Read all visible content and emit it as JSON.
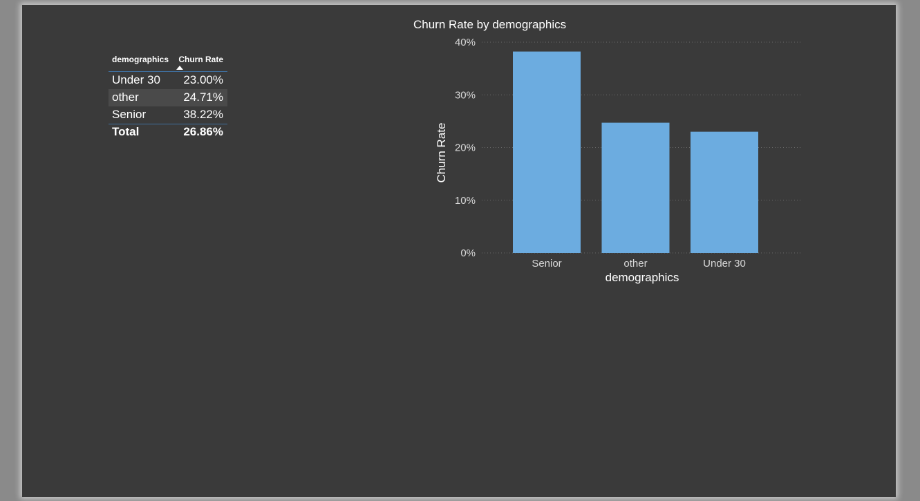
{
  "table": {
    "headers": [
      "demographics",
      "Churn Rate"
    ],
    "rows": [
      {
        "label": "Under 30",
        "value": "23.00%"
      },
      {
        "label": "other",
        "value": "24.71%"
      },
      {
        "label": "Senior",
        "value": "38.22%"
      }
    ],
    "total": {
      "label": "Total",
      "value": "26.86%"
    }
  },
  "colors": {
    "background": "#3a3a3a",
    "bar": "#6cace0",
    "table_divider": "#3f6f9e"
  },
  "chart_data": {
    "type": "bar",
    "title": "Churn Rate by demographics",
    "xlabel": "demographics",
    "ylabel": "Churn Rate",
    "categories": [
      "Senior",
      "other",
      "Under 30"
    ],
    "values": [
      38.22,
      24.71,
      23.0
    ],
    "ylim": [
      0,
      40
    ],
    "yticks": [
      "0%",
      "10%",
      "20%",
      "30%",
      "40%"
    ],
    "grid": true,
    "color": "#6cace0"
  }
}
